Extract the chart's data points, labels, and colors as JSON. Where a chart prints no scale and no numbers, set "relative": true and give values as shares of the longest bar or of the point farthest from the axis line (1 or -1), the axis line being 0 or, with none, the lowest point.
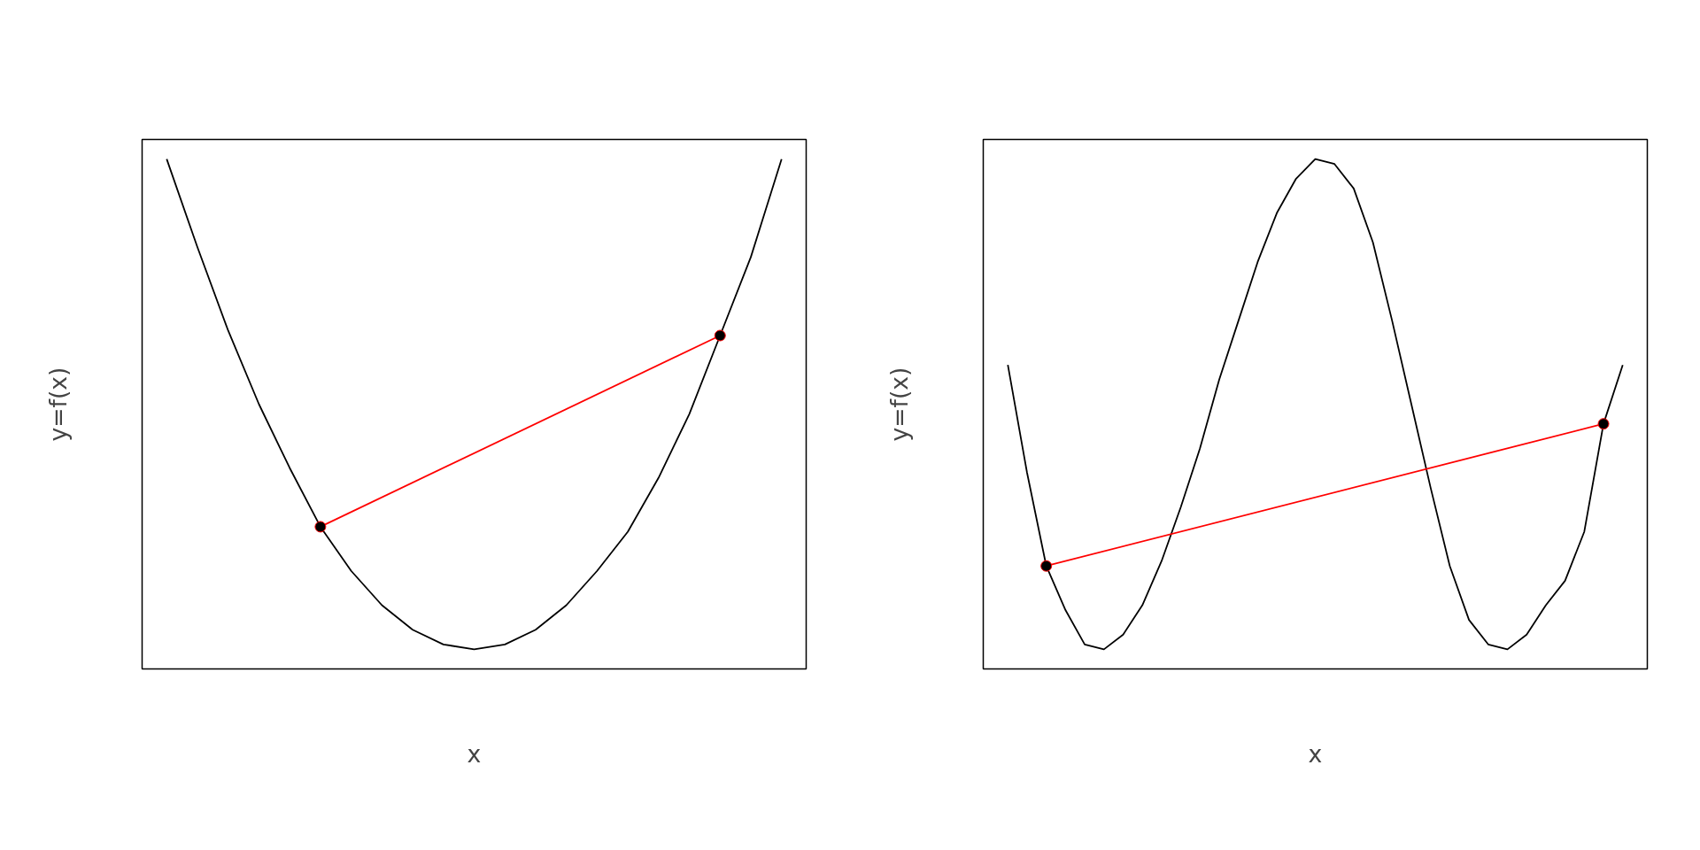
{
  "chart_data": [
    {
      "type": "line",
      "relative": true,
      "xlabel": "x",
      "ylabel": "y=f(x)",
      "categories": [
        null,
        null,
        null,
        null,
        null,
        null,
        null,
        null,
        null,
        null,
        null,
        null,
        null,
        null,
        null,
        null,
        null,
        null,
        null,
        null,
        null
      ],
      "series": [
        {
          "color": "#000000",
          "values": [
            1.0,
            0.82,
            0.65,
            0.5,
            0.37,
            0.25,
            0.16,
            0.09,
            0.04,
            0.01,
            0.0,
            0.01,
            0.04,
            0.09,
            0.16,
            0.24,
            0.35,
            0.48,
            0.64,
            0.8,
            1.0
          ]
        },
        {
          "color": "#ff0000",
          "marker": "circle",
          "values": [
            null,
            null,
            null,
            null,
            null,
            0.25,
            null,
            null,
            null,
            null,
            null,
            null,
            null,
            null,
            null,
            null,
            null,
            null,
            0.64,
            null,
            null
          ]
        }
      ]
    },
    {
      "type": "line",
      "relative": true,
      "xlabel": "x",
      "ylabel": "y=f(x)",
      "categories": [
        null,
        null,
        null,
        null,
        null,
        null,
        null,
        null,
        null,
        null,
        null,
        null,
        null,
        null,
        null,
        null,
        null,
        null,
        null,
        null,
        null,
        null,
        null,
        null,
        null,
        null,
        null,
        null,
        null,
        null,
        null,
        null,
        null
      ],
      "series": [
        {
          "color": "#000000",
          "values": [
            0.58,
            0.36,
            0.17,
            0.08,
            0.01,
            0.0,
            0.03,
            0.09,
            0.18,
            0.29,
            0.41,
            0.55,
            0.67,
            0.79,
            0.89,
            0.96,
            1.0,
            0.99,
            0.94,
            0.83,
            0.67,
            0.5,
            0.33,
            0.17,
            0.06,
            0.01,
            0.0,
            0.03,
            0.09,
            0.14,
            0.24,
            0.46,
            0.58
          ]
        },
        {
          "color": "#ff0000",
          "marker": "circle",
          "values": [
            null,
            null,
            0.17,
            null,
            null,
            null,
            null,
            null,
            null,
            null,
            null,
            null,
            null,
            null,
            null,
            null,
            null,
            null,
            null,
            null,
            null,
            null,
            null,
            null,
            null,
            null,
            null,
            null,
            null,
            null,
            null,
            0.46,
            null
          ]
        }
      ]
    }
  ]
}
